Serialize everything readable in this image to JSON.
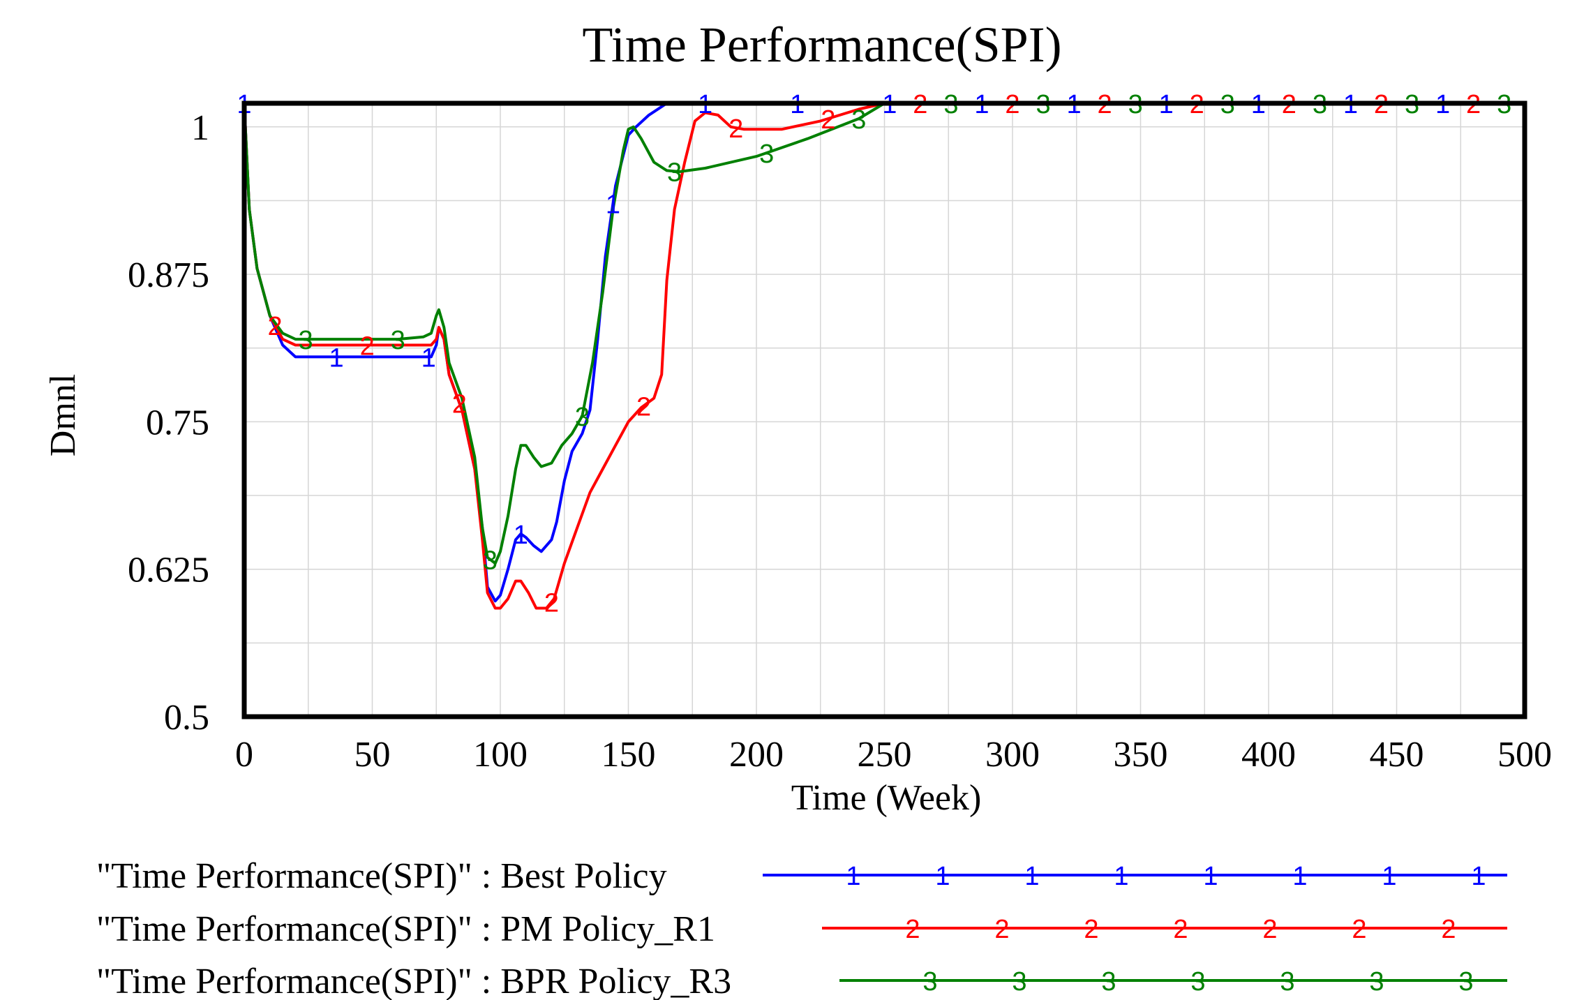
{
  "colors": {
    "s1": "#0000ff",
    "s2": "#ff0000",
    "s3": "#008000"
  },
  "chart_data": {
    "type": "line",
    "title": "Time Performance(SPI)",
    "xlabel": "Time (Week)",
    "ylabel": "Dmnl",
    "xlim": [
      0,
      500
    ],
    "ylim": [
      0.5,
      1.02
    ],
    "x_ticks": [
      0,
      50,
      100,
      150,
      200,
      250,
      300,
      350,
      400,
      450,
      500
    ],
    "x_tick_labels": [
      "0",
      "50",
      "100",
      "150",
      "200",
      "250",
      "300",
      "350",
      "400",
      "450",
      "500"
    ],
    "y_ticks": [
      0.5,
      0.625,
      0.75,
      0.875,
      1
    ],
    "y_tick_labels": [
      "0.5",
      "0.625",
      "0.75",
      "0.875",
      "1"
    ],
    "grid": true,
    "series": [
      {
        "name": "\"Time Performance(SPI)\" : Best Policy",
        "marker": "1",
        "color": "#0000ff",
        "points": [
          [
            0,
            1.02
          ],
          [
            2,
            0.93
          ],
          [
            5,
            0.88
          ],
          [
            10,
            0.84
          ],
          [
            15,
            0.815
          ],
          [
            20,
            0.805
          ],
          [
            40,
            0.805
          ],
          [
            60,
            0.805
          ],
          [
            73,
            0.805
          ],
          [
            75,
            0.815
          ],
          [
            76,
            0.83
          ],
          [
            78,
            0.82
          ],
          [
            80,
            0.79
          ],
          [
            85,
            0.76
          ],
          [
            90,
            0.71
          ],
          [
            93,
            0.66
          ],
          [
            95,
            0.61
          ],
          [
            98,
            0.598
          ],
          [
            100,
            0.603
          ],
          [
            103,
            0.625
          ],
          [
            106,
            0.65
          ],
          [
            108,
            0.655
          ],
          [
            110,
            0.652
          ],
          [
            113,
            0.645
          ],
          [
            116,
            0.64
          ],
          [
            120,
            0.65
          ],
          [
            122,
            0.665
          ],
          [
            125,
            0.7
          ],
          [
            128,
            0.725
          ],
          [
            132,
            0.74
          ],
          [
            135,
            0.76
          ],
          [
            138,
            0.82
          ],
          [
            141,
            0.89
          ],
          [
            145,
            0.95
          ],
          [
            150,
            0.993
          ],
          [
            153,
            1.0
          ],
          [
            158,
            1.01
          ],
          [
            165,
            1.02
          ],
          [
            180,
            1.02
          ],
          [
            200,
            1.02
          ],
          [
            250,
            1.02
          ],
          [
            300,
            1.02
          ],
          [
            350,
            1.02
          ],
          [
            400,
            1.02
          ],
          [
            450,
            1.02
          ],
          [
            500,
            1.02
          ]
        ]
      },
      {
        "name": "\"Time Performance(SPI)\" : PM Policy_R1",
        "marker": "2",
        "color": "#ff0000",
        "points": [
          [
            0,
            1.02
          ],
          [
            2,
            0.93
          ],
          [
            5,
            0.88
          ],
          [
            10,
            0.84
          ],
          [
            15,
            0.82
          ],
          [
            20,
            0.815
          ],
          [
            40,
            0.815
          ],
          [
            60,
            0.815
          ],
          [
            73,
            0.815
          ],
          [
            75,
            0.82
          ],
          [
            76,
            0.83
          ],
          [
            78,
            0.82
          ],
          [
            80,
            0.79
          ],
          [
            85,
            0.76
          ],
          [
            90,
            0.71
          ],
          [
            93,
            0.65
          ],
          [
            95,
            0.605
          ],
          [
            98,
            0.592
          ],
          [
            100,
            0.592
          ],
          [
            103,
            0.6
          ],
          [
            106,
            0.615
          ],
          [
            108,
            0.615
          ],
          [
            111,
            0.605
          ],
          [
            114,
            0.592
          ],
          [
            118,
            0.592
          ],
          [
            121,
            0.6
          ],
          [
            125,
            0.63
          ],
          [
            130,
            0.66
          ],
          [
            135,
            0.69
          ],
          [
            140,
            0.71
          ],
          [
            145,
            0.73
          ],
          [
            150,
            0.75
          ],
          [
            155,
            0.762
          ],
          [
            160,
            0.77
          ],
          [
            163,
            0.79
          ],
          [
            165,
            0.87
          ],
          [
            168,
            0.93
          ],
          [
            172,
            0.97
          ],
          [
            176,
            1.005
          ],
          [
            180,
            1.012
          ],
          [
            185,
            1.01
          ],
          [
            190,
            1.0
          ],
          [
            195,
            0.998
          ],
          [
            210,
            0.998
          ],
          [
            225,
            1.005
          ],
          [
            240,
            1.015
          ],
          [
            250,
            1.02
          ],
          [
            300,
            1.02
          ],
          [
            350,
            1.02
          ],
          [
            400,
            1.02
          ],
          [
            450,
            1.02
          ],
          [
            500,
            1.02
          ]
        ]
      },
      {
        "name": "\"Time Performance(SPI)\" : BPR Policy_R3",
        "marker": "3",
        "color": "#008000",
        "points": [
          [
            0,
            1.02
          ],
          [
            2,
            0.93
          ],
          [
            5,
            0.88
          ],
          [
            10,
            0.84
          ],
          [
            15,
            0.825
          ],
          [
            20,
            0.82
          ],
          [
            40,
            0.82
          ],
          [
            60,
            0.82
          ],
          [
            70,
            0.822
          ],
          [
            73,
            0.825
          ],
          [
            75,
            0.84
          ],
          [
            76,
            0.845
          ],
          [
            78,
            0.83
          ],
          [
            80,
            0.8
          ],
          [
            85,
            0.77
          ],
          [
            90,
            0.72
          ],
          [
            93,
            0.66
          ],
          [
            95,
            0.635
          ],
          [
            98,
            0.63
          ],
          [
            100,
            0.64
          ],
          [
            103,
            0.67
          ],
          [
            106,
            0.71
          ],
          [
            108,
            0.73
          ],
          [
            110,
            0.73
          ],
          [
            113,
            0.72
          ],
          [
            116,
            0.712
          ],
          [
            120,
            0.715
          ],
          [
            124,
            0.73
          ],
          [
            128,
            0.74
          ],
          [
            132,
            0.755
          ],
          [
            136,
            0.8
          ],
          [
            140,
            0.86
          ],
          [
            144,
            0.93
          ],
          [
            148,
            0.98
          ],
          [
            150,
            0.998
          ],
          [
            152,
            1.0
          ],
          [
            155,
            0.99
          ],
          [
            160,
            0.97
          ],
          [
            165,
            0.963
          ],
          [
            170,
            0.962
          ],
          [
            180,
            0.965
          ],
          [
            200,
            0.975
          ],
          [
            220,
            0.99
          ],
          [
            240,
            1.007
          ],
          [
            250,
            1.02
          ],
          [
            300,
            1.02
          ],
          [
            350,
            1.02
          ],
          [
            400,
            1.02
          ],
          [
            450,
            1.02
          ],
          [
            500,
            1.02
          ]
        ]
      }
    ],
    "legend_position": "bottom"
  }
}
